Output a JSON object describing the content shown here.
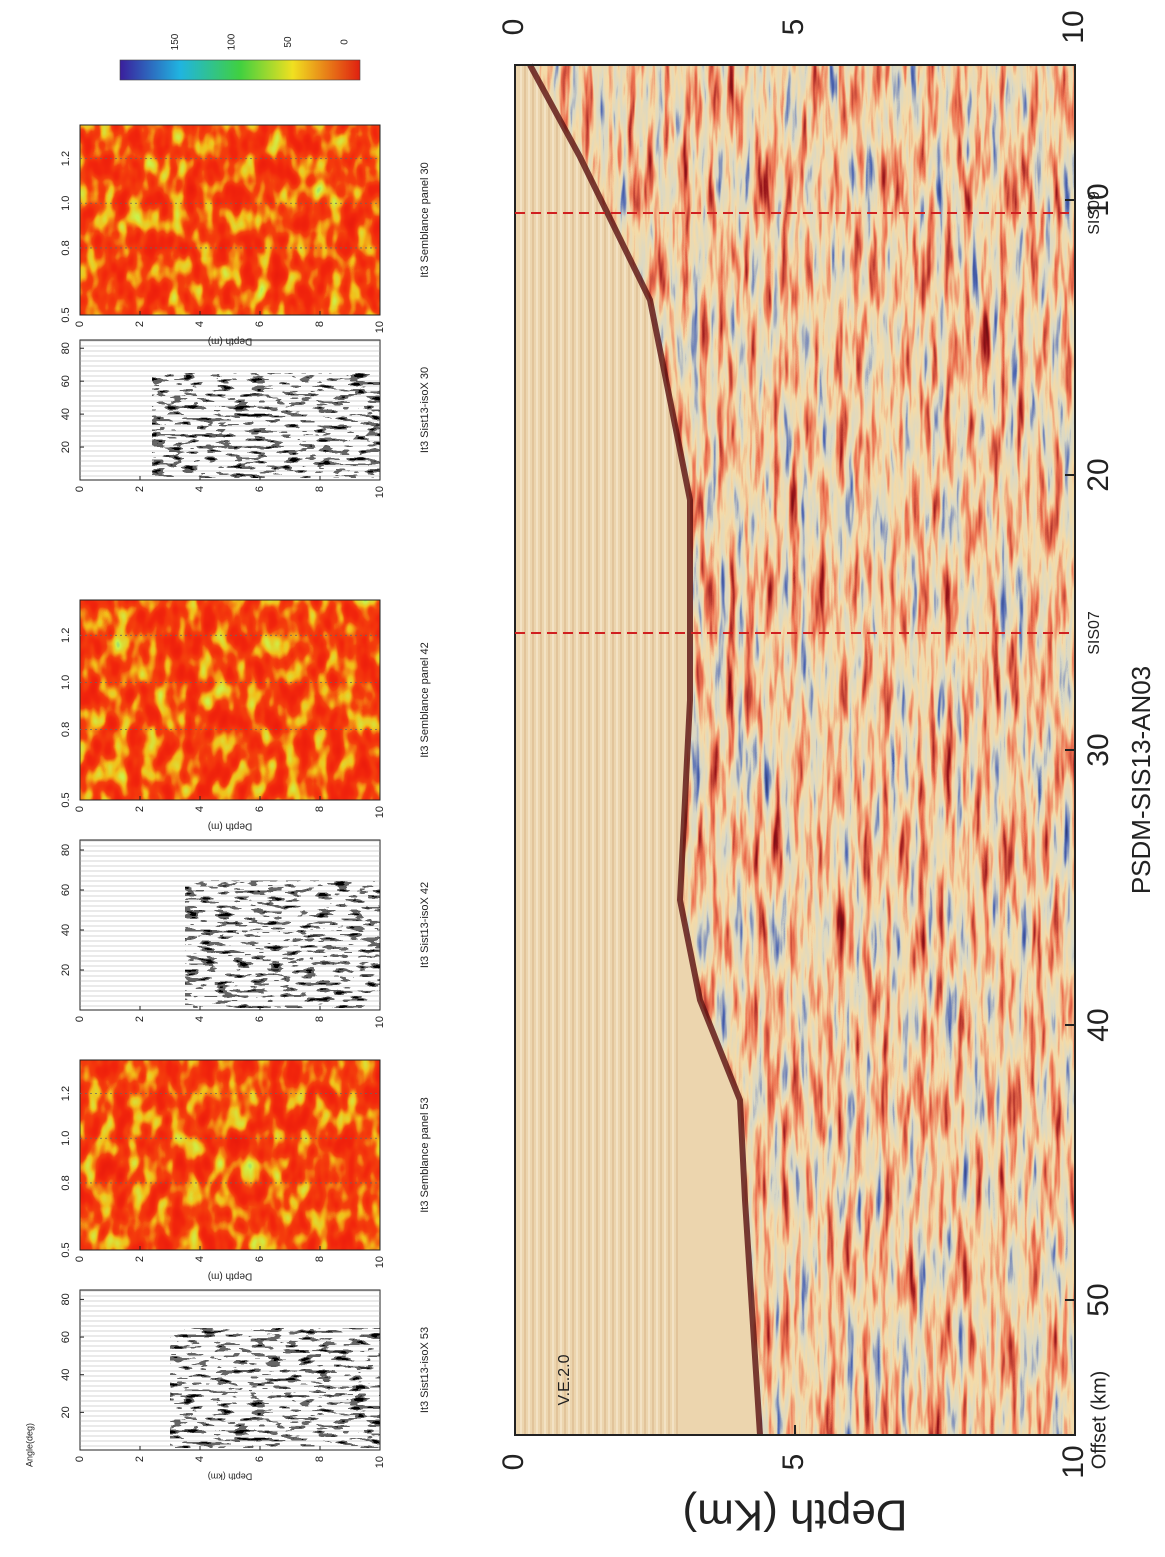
{
  "main_panel": {
    "title": "PSDM-SIS13-AN03",
    "x_label": "Offset (km)",
    "y_label": "Depth (Km)",
    "annotation": "V.E.2.0",
    "x_ticks": [
      "10",
      "20",
      "30",
      "40",
      "50"
    ],
    "y_ticks": [
      "0",
      "5",
      "10"
    ],
    "wells": [
      {
        "label": "SIS09"
      },
      {
        "label": "SIS07"
      }
    ]
  },
  "panel_pairs": [
    {
      "gather": {
        "caption": "It3 Sist13-isoX 53",
        "x_label": "Angle(deg)",
        "y_label": "Depth (km)",
        "x_ticks": [
          "20",
          "40",
          "60",
          "80"
        ],
        "y_ticks": [
          "0",
          "2",
          "4",
          "6",
          "8",
          "10"
        ]
      },
      "semblance": {
        "caption": "It3 Semblance panel 53",
        "y_label": "Depth (m)",
        "x_ticks": [
          "0.5",
          "0.8",
          "1.0",
          "1.2"
        ],
        "y_ticks": [
          "0",
          "2",
          "4",
          "6",
          "8",
          "10"
        ]
      }
    },
    {
      "gather": {
        "caption": "It3 Sist13-isoX 42",
        "x_ticks": [
          "20",
          "40",
          "60",
          "80"
        ],
        "y_ticks": [
          "0",
          "2",
          "4",
          "6",
          "8",
          "10"
        ]
      },
      "semblance": {
        "caption": "It3 Semblance panel 42",
        "y_label": "Depth (m)",
        "x_ticks": [
          "0.5",
          "0.8",
          "1.0",
          "1.2"
        ],
        "y_ticks": [
          "0",
          "2",
          "4",
          "6",
          "8",
          "10"
        ]
      }
    },
    {
      "gather": {
        "caption": "It3 Sist13-isoX 30",
        "x_ticks": [
          "20",
          "40",
          "60",
          "80"
        ],
        "y_ticks": [
          "0",
          "2",
          "4",
          "6",
          "8",
          "10"
        ]
      },
      "semblance": {
        "caption": "It3 Semblance panel 30",
        "y_label": "Depth (m)",
        "x_ticks": [
          "0.5",
          "0.8",
          "1.0",
          "1.2"
        ],
        "y_ticks": [
          "0",
          "2",
          "4",
          "6",
          "8",
          "10"
        ]
      }
    }
  ],
  "colorbar": {
    "ticks": [
      "150",
      "100",
      "50",
      "0"
    ]
  }
}
